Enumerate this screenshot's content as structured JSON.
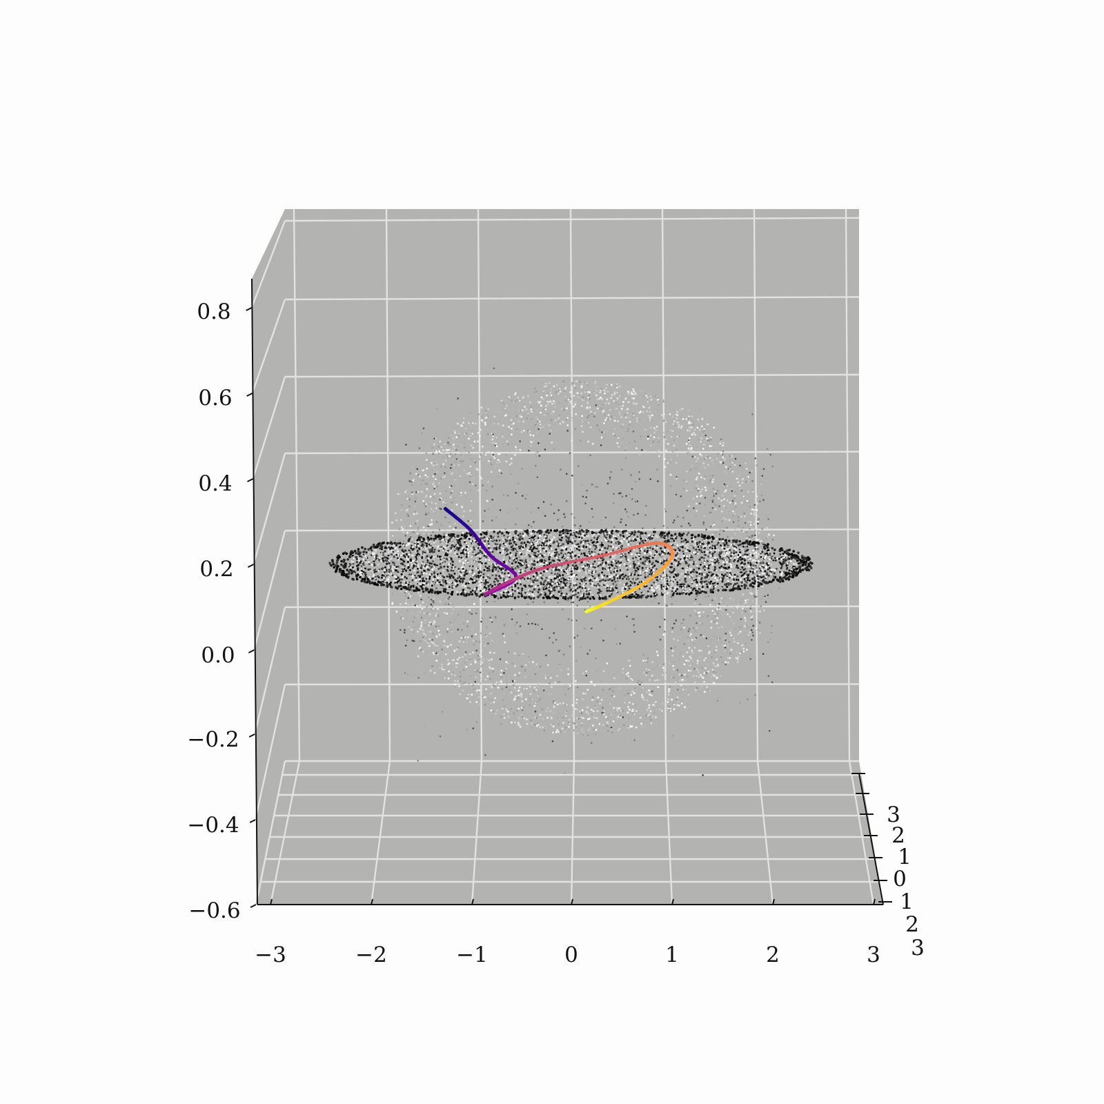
{
  "chart_data": {
    "type": "scatter",
    "projection": "3d",
    "view": "near front elevation, slight azimuth",
    "title": "",
    "xlabel": "",
    "ylabel": "",
    "zlabel": "",
    "xlim": [
      -3,
      3
    ],
    "ylim": [
      -3,
      3
    ],
    "zlim": [
      -0.6,
      0.8
    ],
    "x_ticks": [
      "−3",
      "−2",
      "−1",
      "0",
      "1",
      "2",
      "3"
    ],
    "y_ticks": [
      "3",
      "2",
      "1",
      "0",
      "1",
      "2",
      "3"
    ],
    "z_ticks": [
      "−0.6",
      "−0.4",
      "−0.2",
      "0.0",
      "0.2",
      "0.4",
      "0.6",
      "0.8"
    ],
    "grid": true,
    "pane_color": "#b3b4b2",
    "grid_color": "#e2e2e2",
    "background_color": "#fdfdfd",
    "series": [
      {
        "description_kind": "point-cloud",
        "colormap": "greys",
        "components": [
          {
            "shape": "flattened disk",
            "x_range": [
              -2.4,
              2.4
            ],
            "z_center": 0.2,
            "z_half_thickness": 0.09
          },
          {
            "shape": "diffuse halo",
            "x_range": [
              -1.9,
              2.1
            ],
            "z_range": [
              -0.2,
              0.63
            ]
          }
        ]
      },
      {
        "description_kind": "trajectory",
        "colormap": "plasma",
        "points": [
          {
            "x": -1.25,
            "z": 0.33
          },
          {
            "x": -1.0,
            "z": 0.28
          },
          {
            "x": -0.8,
            "z": 0.22
          },
          {
            "x": -0.55,
            "z": 0.17
          },
          {
            "x": -0.85,
            "z": 0.13
          },
          {
            "x": -0.7,
            "z": 0.15
          },
          {
            "x": -0.3,
            "z": 0.19
          },
          {
            "x": 0.3,
            "z": 0.22
          },
          {
            "x": 0.85,
            "z": 0.25
          },
          {
            "x": 1.0,
            "z": 0.22
          },
          {
            "x": 0.75,
            "z": 0.16
          },
          {
            "x": 0.35,
            "z": 0.11
          },
          {
            "x": 0.15,
            "z": 0.09
          }
        ]
      }
    ]
  }
}
